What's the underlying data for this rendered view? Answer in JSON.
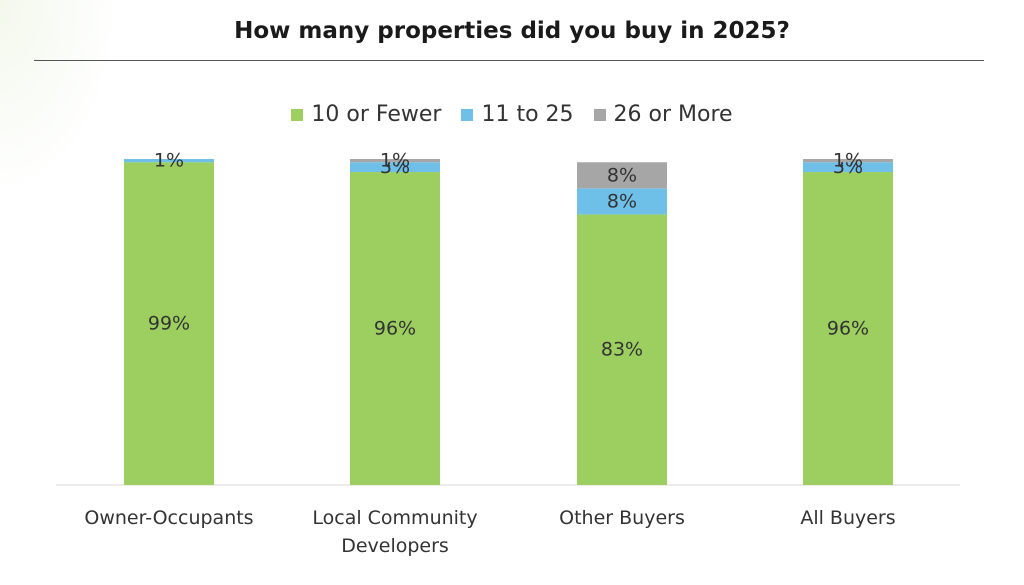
{
  "title": "How many properties did you buy in 2025?",
  "chart_data": {
    "type": "bar",
    "stacked": true,
    "categories": [
      [
        "Owner-Occupants"
      ],
      [
        "Local Community",
        "Developers"
      ],
      [
        "Other Buyers"
      ],
      [
        "All Buyers"
      ]
    ],
    "series": [
      {
        "name": "10 or Fewer",
        "color": "#9ccf5f",
        "values": [
          99,
          96,
          83,
          96
        ],
        "labels": [
          "99%",
          "96%",
          "83%",
          "96%"
        ]
      },
      {
        "name": "11 to 25",
        "color": "#6fc0e8",
        "values": [
          1,
          3,
          8,
          3
        ],
        "labels": [
          "1%",
          "3%",
          "8%",
          "3%"
        ]
      },
      {
        "name": "26 or More",
        "color": "#a6a6a6",
        "values": [
          0,
          1,
          8,
          1
        ],
        "labels": [
          "",
          "1%",
          "8%",
          "1%"
        ]
      }
    ],
    "ylim": [
      0,
      100
    ],
    "legend_position": "top",
    "grid": false
  }
}
